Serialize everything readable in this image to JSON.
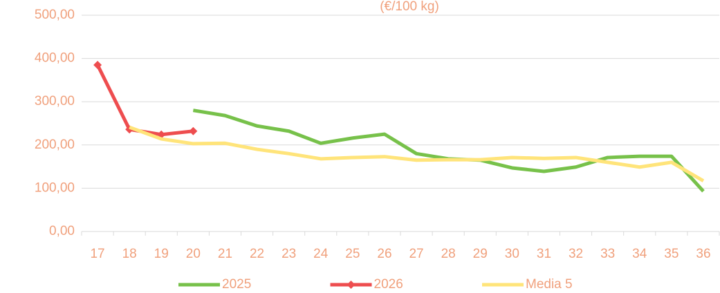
{
  "chart_data": {
    "type": "line",
    "title": "(€/100 kg)",
    "categories": [
      "17",
      "18",
      "19",
      "20",
      "21",
      "22",
      "23",
      "24",
      "25",
      "26",
      "27",
      "28",
      "29",
      "30",
      "31",
      "32",
      "33",
      "34",
      "35",
      "36"
    ],
    "series": [
      {
        "name": "2025",
        "color": "#77c14a",
        "values": [
          null,
          null,
          null,
          280,
          268,
          244,
          232,
          204,
          216,
          225,
          180,
          168,
          165,
          147,
          139,
          149,
          171,
          174,
          174,
          93
        ]
      },
      {
        "name": "2026",
        "color": "#ee4d4f",
        "marker": "diamond",
        "values": [
          385,
          236,
          224,
          232,
          null,
          null,
          null,
          null,
          null,
          null,
          null,
          null,
          null,
          null,
          null,
          null,
          null,
          null,
          null,
          null
        ]
      },
      {
        "name": "Media 5",
        "color": "#ffe47a",
        "values": [
          null,
          241,
          214,
          203,
          204,
          190,
          180,
          168,
          171,
          173,
          165,
          166,
          166,
          171,
          169,
          171,
          160,
          149,
          160,
          117
        ]
      }
    ],
    "ylim": [
      0,
      500
    ],
    "yticks": [
      {
        "value": 0,
        "label": "0,00"
      },
      {
        "value": 100,
        "label": "100,00"
      },
      {
        "value": 200,
        "label": "200,00"
      },
      {
        "value": 300,
        "label": "300,00"
      },
      {
        "value": 400,
        "label": "400,00"
      },
      {
        "value": 500,
        "label": "500,00"
      }
    ],
    "grid": true,
    "legend": "bottom"
  }
}
